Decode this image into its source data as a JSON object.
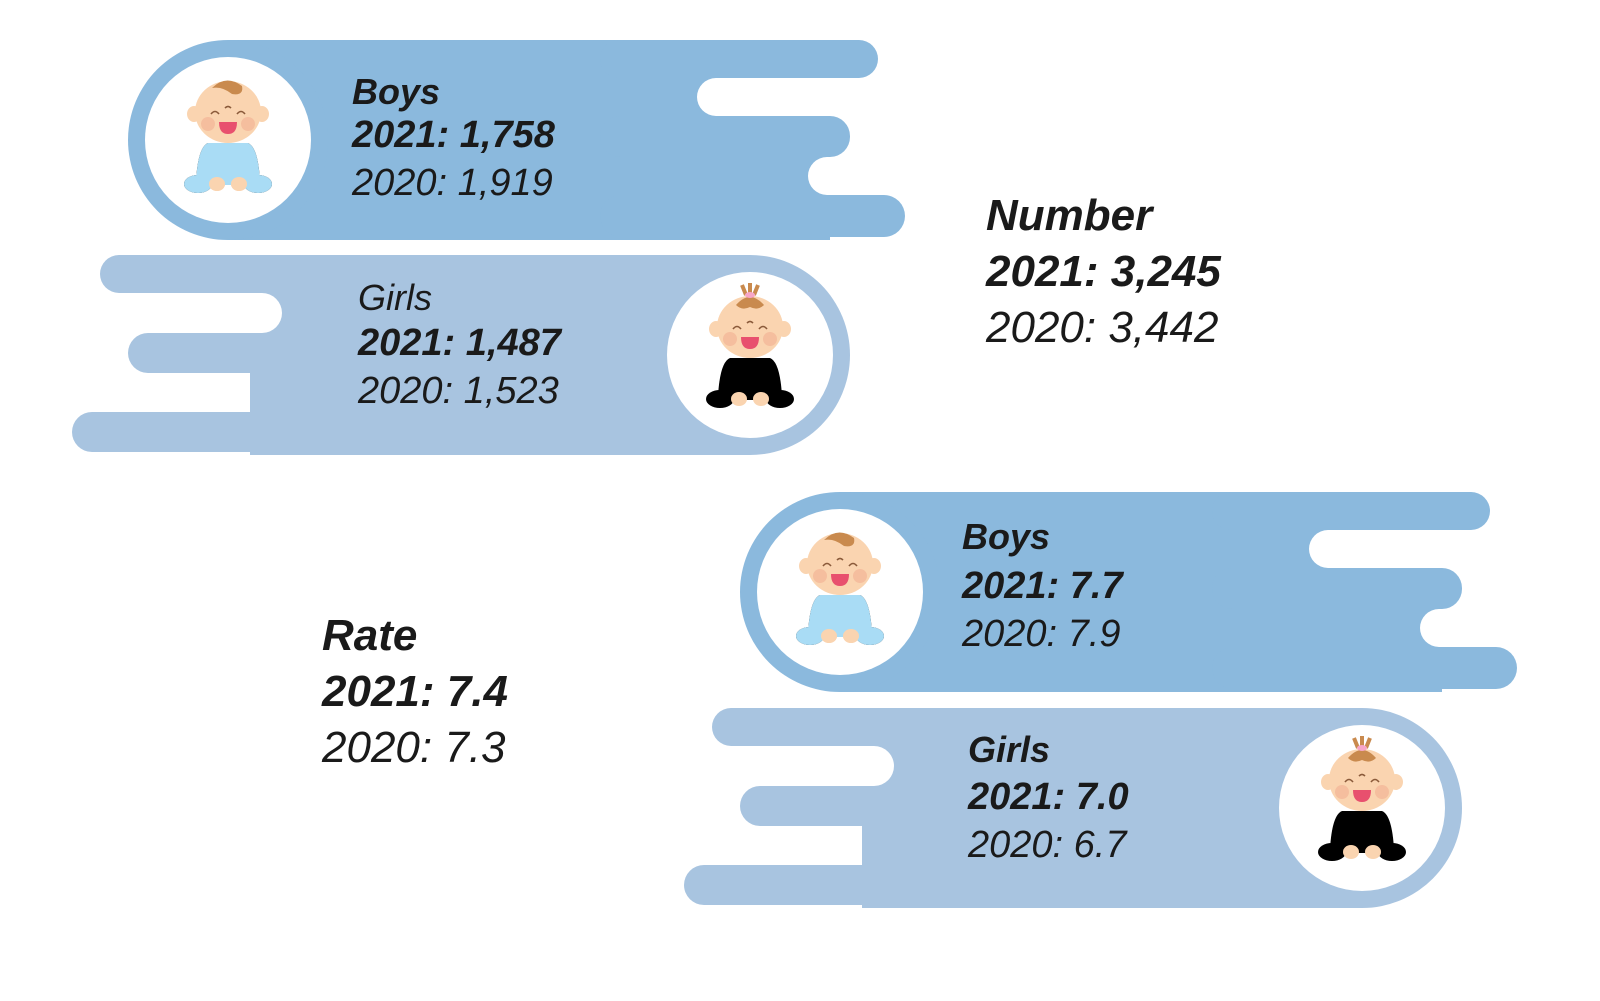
{
  "colors": {
    "boys_band": "#8BB9DD",
    "girls_band": "#A8C4E0",
    "boy_suit": "#A9DCF5",
    "boy_sleeve": "#4DBDEB",
    "girl_suit": "#F7C6DF",
    "girl_sleeve": "#EC6FA8"
  },
  "number": {
    "title": "Number",
    "y2021": "2021: 3,245",
    "y2020": "2020: 3,442",
    "boys": {
      "label": "Boys",
      "y2021": "2021: 1,758",
      "y2020": "2020: 1,919",
      "icon": "baby-boy-icon"
    },
    "girls": {
      "label": "Girls",
      "y2021": "2021: 1,487",
      "y2020": "2020: 1,523",
      "icon": "baby-girl-icon"
    }
  },
  "rate": {
    "title": "Rate",
    "y2021": "2021: 7.4",
    "y2020": "2020: 7.3",
    "boys": {
      "label": "Boys",
      "y2021": "2021: 7.7",
      "y2020": "2020: 7.9",
      "icon": "baby-boy-icon"
    },
    "girls": {
      "label": "Girls",
      "y2021": "2021: 7.0",
      "y2020": "2020: 6.7",
      "icon": "baby-girl-icon"
    }
  }
}
